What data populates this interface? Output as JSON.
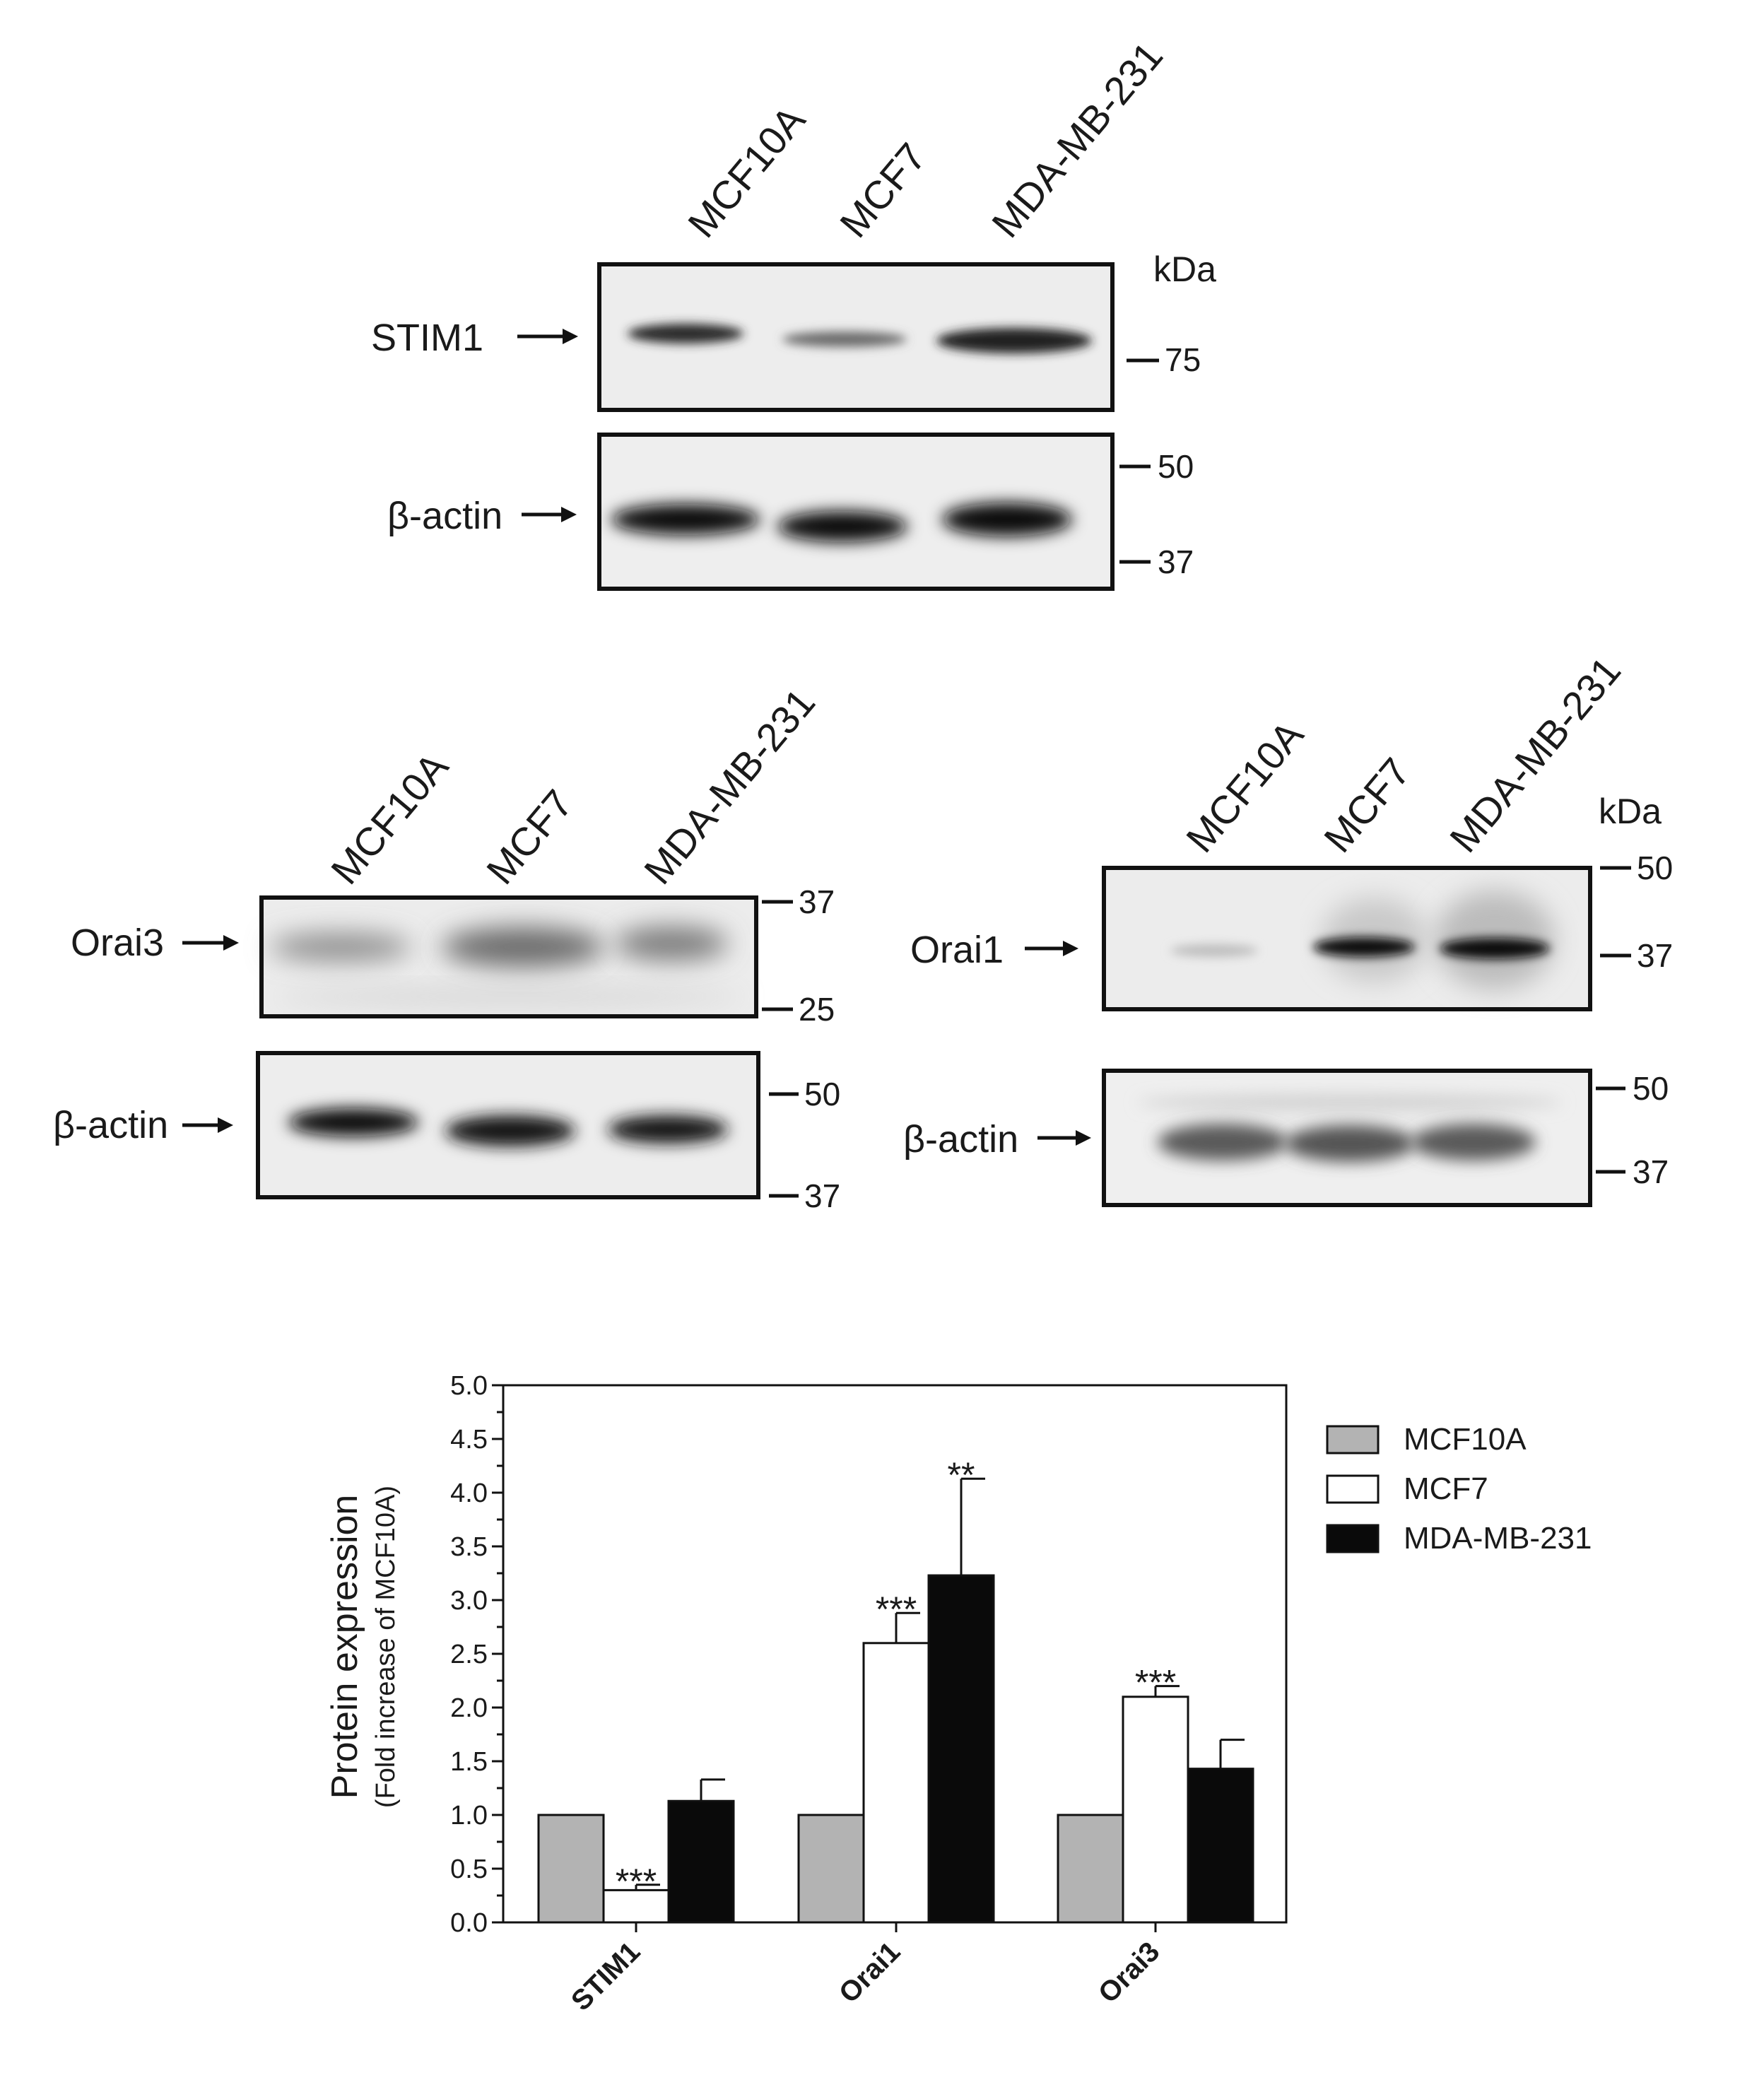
{
  "blots": {
    "top": {
      "lanes": [
        "MCF10A",
        "MCF7",
        "MDA-MB-231"
      ],
      "kda": "kDa",
      "target": {
        "label": "STIM1",
        "markers": [
          "75"
        ]
      },
      "loading": {
        "label": "β-actin",
        "markers": [
          "50",
          "37"
        ]
      }
    },
    "left": {
      "lanes": [
        "MCF10A",
        "MCF7",
        "MDA-MB-231"
      ],
      "target": {
        "label": "Orai3",
        "markers": [
          "37",
          "25"
        ]
      },
      "loading": {
        "label": "β-actin",
        "markers": [
          "50",
          "37"
        ]
      }
    },
    "right": {
      "lanes": [
        "MCF10A",
        "MCF7",
        "MDA-MB-231"
      ],
      "kda": "kDa",
      "target": {
        "label": "Orai1",
        "markers": [
          "50",
          "37"
        ]
      },
      "loading": {
        "label": "β-actin",
        "markers": [
          "50",
          "37"
        ]
      }
    }
  },
  "chart_data": {
    "type": "bar",
    "categories": [
      "STIM1",
      "Orai1",
      "Orai3"
    ],
    "ylabel": "Protein expression",
    "ylabel_sub": "(Fold increase of MCF10A)",
    "ylim": [
      0,
      5.0
    ],
    "yticks": [
      "0.0",
      "0.5",
      "1.0",
      "1.5",
      "2.0",
      "2.5",
      "3.0",
      "3.5",
      "4.0",
      "4.5",
      "5.0"
    ],
    "legend_position": "right",
    "series": [
      {
        "name": "MCF10A",
        "color": "#b3b3b3",
        "values": [
          1.0,
          1.0,
          1.0
        ],
        "errors": [
          0,
          0,
          0
        ],
        "sig": [
          "",
          "",
          ""
        ]
      },
      {
        "name": "MCF7",
        "color": "#ffffff",
        "values": [
          0.3,
          2.6,
          2.1
        ],
        "errors": [
          0.05,
          0.28,
          0.1
        ],
        "sig": [
          "***",
          "***",
          "***"
        ]
      },
      {
        "name": "MDA-MB-231",
        "color": "#0a0a0a",
        "values": [
          1.13,
          3.23,
          1.43
        ],
        "errors": [
          0.2,
          0.9,
          0.27
        ],
        "sig": [
          "",
          "**",
          ""
        ]
      }
    ]
  }
}
